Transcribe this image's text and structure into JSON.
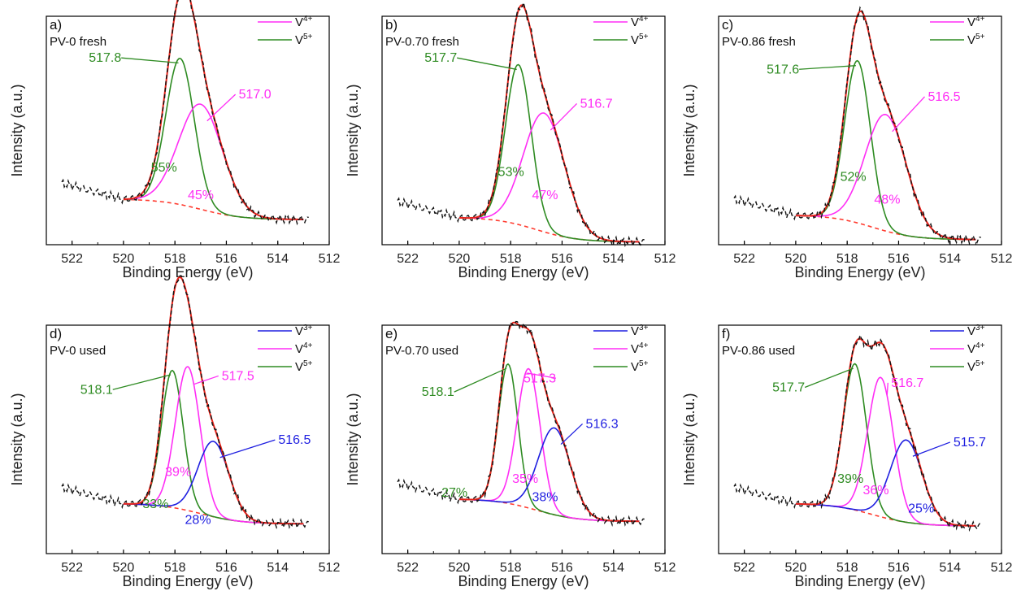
{
  "colors": {
    "v3": "#1f1fe0",
    "v4": "#ff2ef5",
    "v5": "#2e8b22",
    "envelope": "#e8231a",
    "raw": "#111111",
    "background": "#ff3b2f"
  },
  "chart_data": [
    {
      "type": "line",
      "panel_letter": "a)",
      "sample": "PV-0 fresh",
      "xlabel": "Binding Energy (eV)",
      "ylabel": "Intensity (a.u.)",
      "xlim": [
        523,
        512
      ],
      "x_reversed": true,
      "x_ticks": [
        522,
        520,
        518,
        516,
        514,
        512
      ],
      "legend": {
        "placement": "top-right",
        "entries": [
          {
            "key": "v4",
            "label": "V",
            "sup": "4+"
          },
          {
            "key": "v5",
            "label": "V",
            "sup": "5+"
          }
        ]
      },
      "components": [
        {
          "key": "v5",
          "center": 517.8,
          "peak_label": "517.8",
          "area_label": "55%"
        },
        {
          "key": "v4",
          "center": 517.0,
          "peak_label": "517.0",
          "area_label": "45%"
        }
      ]
    },
    {
      "type": "line",
      "panel_letter": "b)",
      "sample": "PV-0.70 fresh",
      "xlabel": "Binding Energy (eV)",
      "ylabel": "Intensity (a.u.)",
      "xlim": [
        523,
        512
      ],
      "x_reversed": true,
      "x_ticks": [
        522,
        520,
        518,
        516,
        514,
        512
      ],
      "legend": {
        "placement": "top-right",
        "entries": [
          {
            "key": "v4",
            "label": "V",
            "sup": "4+"
          },
          {
            "key": "v5",
            "label": "V",
            "sup": "5+"
          }
        ]
      },
      "components": [
        {
          "key": "v5",
          "center": 517.7,
          "peak_label": "517.7",
          "area_label": "53%"
        },
        {
          "key": "v4",
          "center": 516.7,
          "peak_label": "516.7",
          "area_label": "47%"
        }
      ]
    },
    {
      "type": "line",
      "panel_letter": "c)",
      "sample": "PV-0.86 fresh",
      "xlabel": "Binding Energy (eV)",
      "ylabel": "Intensity (a.u.)",
      "xlim": [
        523,
        512
      ],
      "x_reversed": true,
      "x_ticks": [
        522,
        520,
        518,
        516,
        514,
        512
      ],
      "legend": {
        "placement": "top-right",
        "entries": [
          {
            "key": "v4",
            "label": "V",
            "sup": "4+"
          },
          {
            "key": "v5",
            "label": "V",
            "sup": "5+"
          }
        ]
      },
      "components": [
        {
          "key": "v5",
          "center": 517.6,
          "peak_label": "517.6",
          "area_label": "52%"
        },
        {
          "key": "v4",
          "center": 516.5,
          "peak_label": "516.5",
          "area_label": "48%"
        }
      ]
    },
    {
      "type": "line",
      "panel_letter": "d)",
      "sample": "PV-0 used",
      "xlabel": "Binding Energy (eV)",
      "ylabel": "Intensity (a.u.)",
      "xlim": [
        523,
        512
      ],
      "x_reversed": true,
      "x_ticks": [
        522,
        520,
        518,
        516,
        514,
        512
      ],
      "legend": {
        "placement": "top-right",
        "entries": [
          {
            "key": "v3",
            "label": "V",
            "sup": "3+"
          },
          {
            "key": "v4",
            "label": "V",
            "sup": "4+"
          },
          {
            "key": "v5",
            "label": "V",
            "sup": "5+"
          }
        ]
      },
      "components": [
        {
          "key": "v5",
          "center": 518.1,
          "peak_label": "518.1",
          "area_label": "33%"
        },
        {
          "key": "v4",
          "center": 517.5,
          "peak_label": "517.5",
          "area_label": "39%"
        },
        {
          "key": "v3",
          "center": 516.5,
          "peak_label": "516.5",
          "area_label": "28%"
        }
      ]
    },
    {
      "type": "line",
      "panel_letter": "e)",
      "sample": "PV-0.70 used",
      "xlabel": "Binding Energy (eV)",
      "ylabel": "Intensity (a.u.)",
      "xlim": [
        523,
        512
      ],
      "x_reversed": true,
      "x_ticks": [
        522,
        520,
        518,
        516,
        514,
        512
      ],
      "legend": {
        "placement": "top-right",
        "entries": [
          {
            "key": "v3",
            "label": "V",
            "sup": "3+"
          },
          {
            "key": "v4",
            "label": "V",
            "sup": "4+"
          },
          {
            "key": "v5",
            "label": "V",
            "sup": "5+"
          }
        ]
      },
      "components": [
        {
          "key": "v5",
          "center": 518.1,
          "peak_label": "518.1",
          "area_label": "27%"
        },
        {
          "key": "v4",
          "center": 517.3,
          "peak_label": "517.3",
          "area_label": "35%"
        },
        {
          "key": "v3",
          "center": 516.3,
          "peak_label": "516.3",
          "area_label": "38%"
        }
      ]
    },
    {
      "type": "line",
      "panel_letter": "f)",
      "sample": "PV-0.86 used",
      "xlabel": "Binding Energy (eV)",
      "ylabel": "Intensity (a.u.)",
      "xlim": [
        523,
        512
      ],
      "x_reversed": true,
      "x_ticks": [
        522,
        520,
        518,
        516,
        514,
        512
      ],
      "legend": {
        "placement": "top-right",
        "entries": [
          {
            "key": "v3",
            "label": "V",
            "sup": "3+"
          },
          {
            "key": "v4",
            "label": "V",
            "sup": "4+"
          },
          {
            "key": "v5",
            "label": "V",
            "sup": "5+"
          }
        ]
      },
      "components": [
        {
          "key": "v5",
          "center": 517.7,
          "peak_label": "517.7",
          "area_label": "39%"
        },
        {
          "key": "v4",
          "center": 516.7,
          "peak_label": "516.7",
          "area_label": "36%"
        },
        {
          "key": "v3",
          "center": 515.7,
          "peak_label": "515.7",
          "area_label": "25%"
        }
      ]
    }
  ]
}
